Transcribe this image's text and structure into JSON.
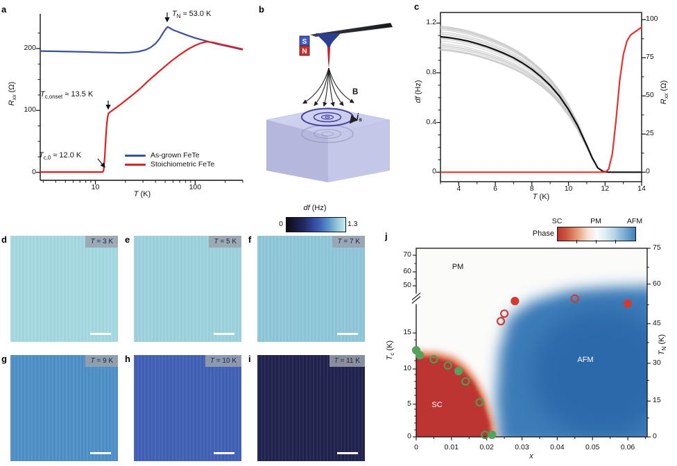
{
  "panels": {
    "a": {
      "label": "a",
      "ylabel": {
        "v": "R",
        "s": "xx",
        "u": " (Ω)"
      },
      "xlabel": {
        "v": "T",
        "u": " (K)"
      },
      "y_ticks": [
        "0",
        "100",
        "200"
      ],
      "x_ticks": [
        "10",
        "100"
      ],
      "legend": [
        {
          "label": "As-grown FeTe",
          "color": "#3b4fa0"
        },
        {
          "label": "Stoichiometric FeTe",
          "color": "#e02020"
        }
      ],
      "annotations": {
        "tn": {
          "v": "T",
          "s": "N",
          "rest": " ≈ 53.0 K"
        },
        "tconset": {
          "v": "T",
          "s": "c,onset",
          "rest": " ≈ 13.5 K"
        },
        "tc0": {
          "v": "T",
          "s": "c,0",
          "rest": " ≈ 12.0 K"
        }
      }
    },
    "b": {
      "label": "b",
      "magnet_top": "S",
      "magnet_bottom": "N",
      "field_label": "B",
      "current": {
        "v": "j",
        "s": "s"
      }
    },
    "c": {
      "label": "c",
      "ylabel_left": {
        "v": "df",
        "u": " (Hz)"
      },
      "ylabel_right": {
        "v": "R",
        "s": "xx",
        "u": " (Ω)"
      },
      "xlabel": {
        "v": "T",
        "u": " (K)"
      },
      "y_ticks_left": [
        "0",
        "0.4",
        "0.8",
        "1.2"
      ],
      "y_ticks_right": [
        "0",
        "25",
        "50",
        "75",
        "100"
      ],
      "x_ticks": [
        "4",
        "6",
        "8",
        "10",
        "12",
        "14"
      ]
    },
    "colorbar_df": {
      "title": {
        "v": "df",
        "u": " (Hz)"
      },
      "min": "0",
      "max": "1.3"
    },
    "images": [
      {
        "letter": "d",
        "tag_var": "T",
        "tag_rest": " = 3 K",
        "color": "#a5d8e1"
      },
      {
        "letter": "e",
        "tag_var": "T",
        "tag_rest": " = 5 K",
        "color": "#9dd3de"
      },
      {
        "letter": "f",
        "tag_var": "T",
        "tag_rest": " = 7 K",
        "color": "#8fc8d9"
      },
      {
        "letter": "g",
        "tag_var": "T",
        "tag_rest": " = 9 K",
        "color": "#4f90c7"
      },
      {
        "letter": "h",
        "tag_var": "T",
        "tag_rest": " = 10 K",
        "color": "#4161b6"
      },
      {
        "letter": "i",
        "tag_var": "T",
        "tag_rest": " = 11 K",
        "color": "#20234e"
      }
    ],
    "j": {
      "label": "j",
      "ylabel_left": {
        "v": "T",
        "s": "c",
        "u": " (K)"
      },
      "ylabel_right": {
        "v": "T",
        "s": "N",
        "u": " (K)"
      },
      "xlabel": {
        "v": "x"
      },
      "left_ticks": [
        "70",
        "60",
        "50",
        "15",
        "10",
        "5",
        "0"
      ],
      "right_ticks": [
        "75",
        "60",
        "45",
        "30",
        "15",
        "0"
      ],
      "x_ticks": [
        "0",
        "0.01",
        "0.02",
        "0.03",
        "0.04",
        "0.05",
        "0.06"
      ],
      "region_labels": {
        "pm": "PM",
        "afm": "AFM",
        "sc": "SC"
      },
      "phase_legend": {
        "title": "Phase",
        "labels": [
          "SC",
          "PM",
          "AFM"
        ]
      }
    }
  },
  "chart_data": [
    {
      "id": "a",
      "type": "line",
      "x_scale": "log",
      "xlabel": "T (K)",
      "ylabel": "Rxx (Ohm)",
      "xlim": [
        2.8,
        300
      ],
      "ylim": [
        -6,
        256
      ],
      "x_ticks": [
        10,
        100
      ],
      "y_ticks": [
        0,
        100,
        200
      ],
      "series": [
        {
          "name": "As-grown FeTe",
          "color": "#3b4fa0",
          "points": [
            [
              2.8,
              196
            ],
            [
              4,
              195.5
            ],
            [
              6,
              195
            ],
            [
              8,
              194.5
            ],
            [
              10,
              194
            ],
            [
              14,
              193.5
            ],
            [
              18,
              193
            ],
            [
              22,
              193.5
            ],
            [
              27,
              195
            ],
            [
              32,
              198
            ],
            [
              36,
              202
            ],
            [
              40,
              208
            ],
            [
              44,
              216
            ],
            [
              48,
              226
            ],
            [
              51,
              232
            ],
            [
              53,
              235
            ],
            [
              56,
              233
            ],
            [
              60,
              230
            ],
            [
              70,
              226
            ],
            [
              85,
              221
            ],
            [
              100,
              217
            ],
            [
              130,
              212
            ],
            [
              170,
              207
            ],
            [
              220,
              203
            ],
            [
              300,
              198
            ]
          ]
        },
        {
          "name": "Stoichiometric FeTe",
          "color": "#e02020",
          "points": [
            [
              2.8,
              0.5
            ],
            [
              11.8,
              0.5
            ],
            [
              12.1,
              3
            ],
            [
              12.4,
              25
            ],
            [
              12.7,
              55
            ],
            [
              13,
              78
            ],
            [
              13.3,
              90
            ],
            [
              13.5,
              95
            ],
            [
              14.2,
              98
            ],
            [
              16,
              104
            ],
            [
              18,
              110
            ],
            [
              20,
              116
            ],
            [
              24,
              126
            ],
            [
              28,
              135
            ],
            [
              34,
              148
            ],
            [
              40,
              158
            ],
            [
              48,
              169
            ],
            [
              58,
              180
            ],
            [
              70,
              190
            ],
            [
              85,
              199
            ],
            [
              100,
              205
            ],
            [
              115,
              209
            ],
            [
              130,
              211
            ],
            [
              150,
              210
            ],
            [
              180,
              207
            ],
            [
              220,
              204
            ],
            [
              300,
              199
            ]
          ]
        }
      ],
      "annotations": [
        {
          "text": "TN ≈ 53.0 K",
          "at_T": 53
        },
        {
          "text": "Tc,onset ≈ 13.5 K",
          "at_T": 13.5
        },
        {
          "text": "Tc,0 ≈ 12.0 K",
          "at_T": 12.0
        }
      ]
    },
    {
      "id": "c",
      "type": "line",
      "xlabel": "T (K)",
      "ylabel_left": "df (Hz)",
      "ylabel_right": "Rxx (Ohm)",
      "xlim": [
        3,
        14
      ],
      "ylim_left": [
        0,
        1.285
      ],
      "ylim_right": [
        0,
        104.7
      ],
      "x_ticks": [
        4,
        6,
        8,
        10,
        12,
        14
      ],
      "y_ticks_left": [
        0,
        0.4,
        0.8,
        1.2
      ],
      "y_ticks_right": [
        0,
        25,
        50,
        75,
        100
      ],
      "series": [
        {
          "name": "df mean",
          "axis": "left",
          "color": "#111111",
          "points": [
            [
              3,
              1.09
            ],
            [
              3.5,
              1.082
            ],
            [
              4,
              1.07
            ],
            [
              4.5,
              1.055
            ],
            [
              5,
              1.035
            ],
            [
              5.5,
              1.012
            ],
            [
              6,
              0.985
            ],
            [
              6.5,
              0.955
            ],
            [
              7,
              0.92
            ],
            [
              7.5,
              0.878
            ],
            [
              8,
              0.828
            ],
            [
              8.5,
              0.768
            ],
            [
              9,
              0.698
            ],
            [
              9.5,
              0.613
            ],
            [
              10,
              0.505
            ],
            [
              10.5,
              0.375
            ],
            [
              11,
              0.215
            ],
            [
              11.3,
              0.115
            ],
            [
              11.6,
              0.035
            ],
            [
              11.9,
              0.005
            ],
            [
              12.2,
              0
            ],
            [
              14,
              0
            ]
          ]
        },
        {
          "name": "Rxx",
          "axis": "right",
          "color": "#e8302d",
          "points": [
            [
              3,
              0
            ],
            [
              12.0,
              0
            ],
            [
              12.2,
              2
            ],
            [
              12.4,
              12
            ],
            [
              12.6,
              34
            ],
            [
              12.8,
              60
            ],
            [
              13.0,
              77
            ],
            [
              13.2,
              86
            ],
            [
              13.4,
              90
            ],
            [
              13.7,
              92.5
            ],
            [
              14,
              95
            ]
          ]
        }
      ],
      "ensemble": {
        "color": "#cccccc",
        "count": 30,
        "scale_range": [
          0.9,
          1.08
        ],
        "basis": "df mean"
      }
    },
    {
      "id": "j",
      "type": "scatter",
      "xlabel": "x",
      "ylabel_left": "Tc (K)",
      "ylabel_right": "TN (K)",
      "xlim": [
        0,
        0.0655
      ],
      "left_axis": {
        "lower_range": [
          0,
          15
        ],
        "upper_range": [
          50,
          75
        ],
        "broken": true
      },
      "right_axis_range": [
        0,
        75
      ],
      "regions": [
        "SC",
        "PM",
        "AFM"
      ],
      "series": [
        {
          "name": "Tc filled",
          "marker": "circle-filled",
          "axis": "left",
          "color": "#55a25c",
          "points": [
            [
              0,
              12.5
            ],
            [
              0.001,
              11.8
            ],
            [
              0.012,
              9.5
            ],
            [
              0.0215,
              0.3
            ]
          ]
        },
        {
          "name": "Tc open",
          "marker": "circle-open",
          "axis": "left",
          "color": "#4e9b52",
          "points": [
            [
              0.005,
              11.2
            ],
            [
              0.009,
              10.3
            ],
            [
              0.014,
              8.0
            ],
            [
              0.018,
              5.0
            ],
            [
              0.0195,
              0.3
            ]
          ]
        },
        {
          "name": "TN filled",
          "marker": "circle-filled",
          "axis": "right",
          "color": "#d23b34",
          "points": [
            [
              0.028,
              54
            ],
            [
              0.06,
              53
            ]
          ]
        },
        {
          "name": "TN open",
          "marker": "circle-open",
          "axis": "right",
          "color": "#cf3b33",
          "points": [
            [
              0.024,
              46
            ],
            [
              0.025,
              49
            ],
            [
              0.045,
              55
            ]
          ]
        }
      ]
    }
  ]
}
